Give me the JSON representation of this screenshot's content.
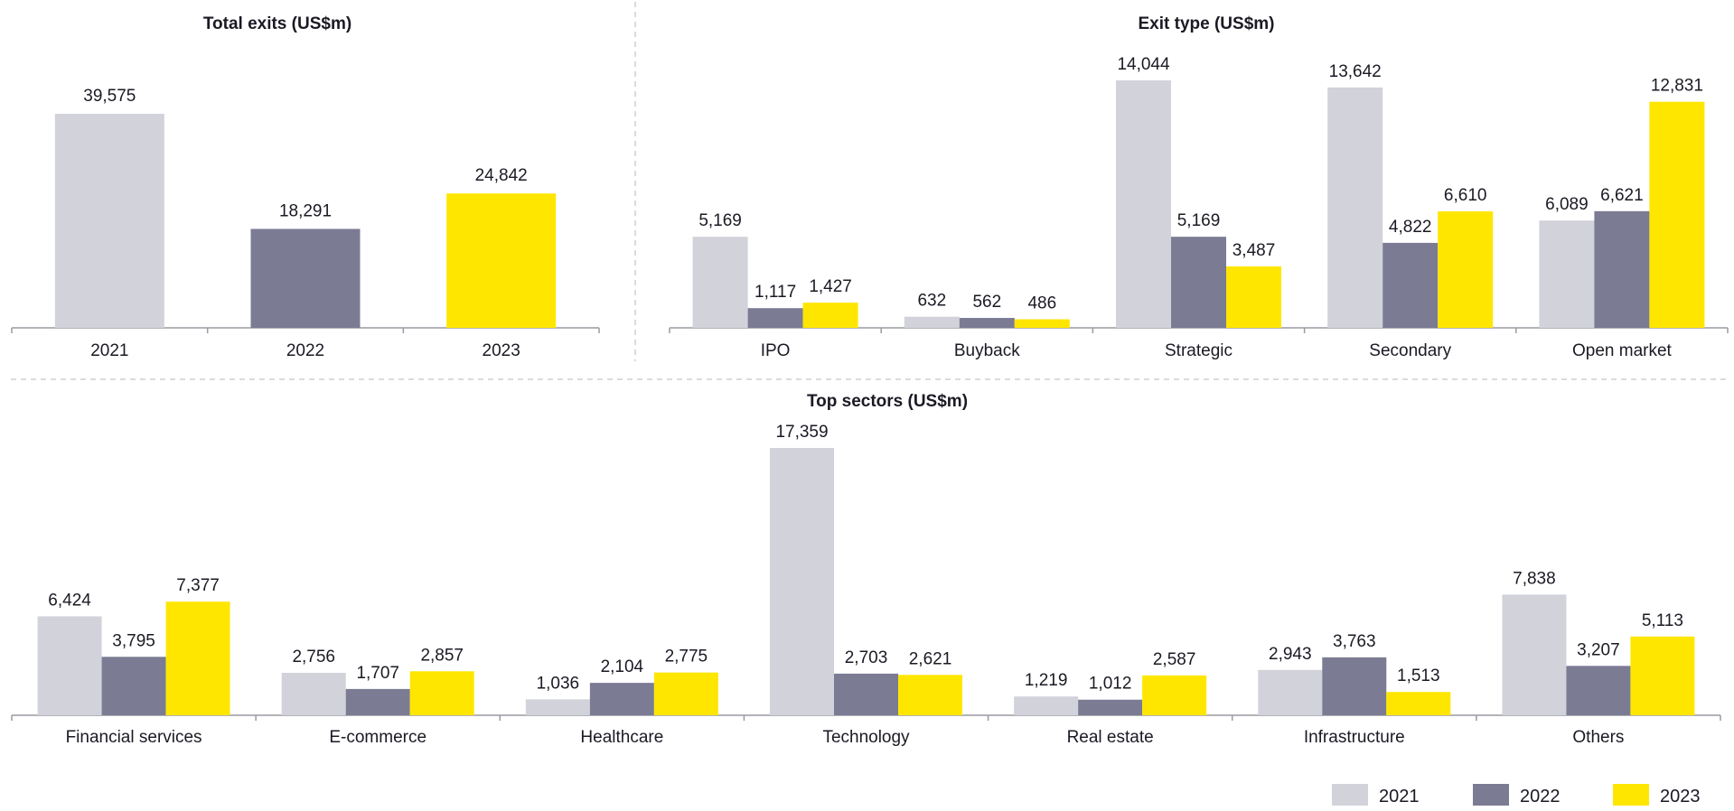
{
  "colors": {
    "2021": "#d2d2da",
    "2022": "#7b7b94",
    "2023": "#ffe600",
    "axis": "#9a9aa2",
    "divider": "#cfcfd4"
  },
  "legend": [
    "2021",
    "2022",
    "2023"
  ],
  "chart_data": [
    {
      "id": "total",
      "type": "bar",
      "title": "Total exits (US$m)",
      "categories": [
        "2021",
        "2022",
        "2023"
      ],
      "values": [
        39575,
        18291,
        24842
      ],
      "labels": [
        "39,575",
        "18,291",
        "24,842"
      ],
      "colorKeys": [
        "2021",
        "2022",
        "2023"
      ]
    },
    {
      "id": "exittype",
      "type": "bar",
      "title": "Exit type (US$m)",
      "categories": [
        "IPO",
        "Buyback",
        "Strategic",
        "Secondary",
        "Open market"
      ],
      "series": [
        {
          "name": "2021",
          "values": [
            5169,
            632,
            14044,
            13642,
            6089
          ],
          "labels": [
            "5,169",
            "632",
            "14,044",
            "13,642",
            "6,089"
          ]
        },
        {
          "name": "2022",
          "values": [
            1117,
            562,
            5169,
            4822,
            6621
          ],
          "labels": [
            "1,117",
            "562",
            "5,169",
            "4,822",
            "6,621"
          ]
        },
        {
          "name": "2023",
          "values": [
            1427,
            486,
            3487,
            6610,
            12831
          ],
          "labels": [
            "1,427",
            "486",
            "3,487",
            "6,610",
            "12,831"
          ]
        }
      ]
    },
    {
      "id": "sectors",
      "type": "bar",
      "title": "Top sectors (US$m)",
      "categories": [
        "Financial services",
        "E-commerce",
        "Healthcare",
        "Technology",
        "Real estate",
        "Infrastructure",
        "Others"
      ],
      "series": [
        {
          "name": "2021",
          "values": [
            6424,
            2756,
            1036,
            17359,
            1219,
            2943,
            7838
          ],
          "labels": [
            "6,424",
            "2,756",
            "1,036",
            "17,359",
            "1,219",
            "2,943",
            "7,838"
          ]
        },
        {
          "name": "2022",
          "values": [
            3795,
            1707,
            2104,
            2703,
            1012,
            3763,
            3207
          ],
          "labels": [
            "3,795",
            "1,707",
            "2,104",
            "2,703",
            "1,012",
            "3,763",
            "3,207"
          ]
        },
        {
          "name": "2023",
          "values": [
            7377,
            2857,
            2775,
            2621,
            2587,
            1513,
            5113
          ],
          "labels": [
            "7,377",
            "2,857",
            "2,775",
            "2,621",
            "2,587",
            "1,513",
            "5,113"
          ]
        }
      ]
    }
  ]
}
